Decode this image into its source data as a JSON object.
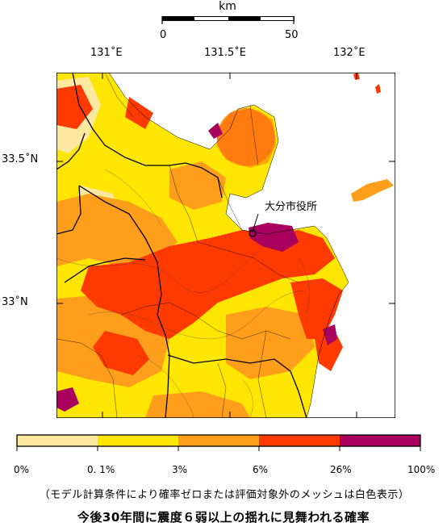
{
  "scale": {
    "unit": "km",
    "labels": [
      "0",
      "50"
    ]
  },
  "lon_labels": [
    "131˚E",
    "131.5˚E",
    "132˚E"
  ],
  "lat_labels": [
    "33.5˚N",
    "33˚N"
  ],
  "city_label": "大分市役所",
  "legend": {
    "colors": [
      "#fde8a0",
      "#ffe600",
      "#ff9e1a",
      "#ff3a00",
      "#a8005c"
    ],
    "ticks": [
      "0%",
      "0. 1%",
      "3%",
      "6%",
      "26%",
      "100%"
    ]
  },
  "note": "（モデル計算条件により確率ゼロまたは評価対象外のメッシュは白色表示）",
  "caption": "今後30年間に震度６弱以上の揺れに見舞われる確率"
}
